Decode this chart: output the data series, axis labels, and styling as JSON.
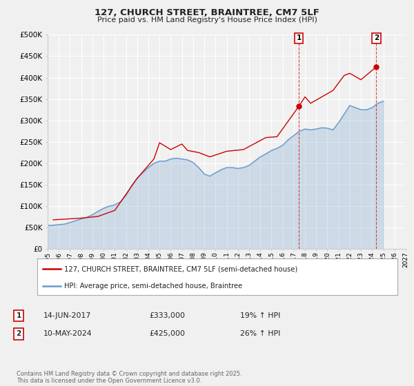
{
  "title1": "127, CHURCH STREET, BRAINTREE, CM7 5LF",
  "title2": "Price paid vs. HM Land Registry's House Price Index (HPI)",
  "legend_line1": "127, CHURCH STREET, BRAINTREE, CM7 5LF (semi-detached house)",
  "legend_line2": "HPI: Average price, semi-detached house, Braintree",
  "annotation1_label": "1",
  "annotation1_date": "14-JUN-2017",
  "annotation1_price": "£333,000",
  "annotation1_hpi": "19% ↑ HPI",
  "annotation1_year": 2017.45,
  "annotation1_value": 333000,
  "annotation2_label": "2",
  "annotation2_date": "10-MAY-2024",
  "annotation2_price": "£425,000",
  "annotation2_hpi": "26% ↑ HPI",
  "annotation2_year": 2024.37,
  "annotation2_value": 425000,
  "xmin": 1995,
  "xmax": 2027,
  "ymin": 0,
  "ymax": 500000,
  "yticks": [
    0,
    50000,
    100000,
    150000,
    200000,
    250000,
    300000,
    350000,
    400000,
    450000,
    500000
  ],
  "background_color": "#f0f0f0",
  "plot_bg_color": "#f0f0f0",
  "red_color": "#cc0000",
  "blue_color": "#6699cc",
  "grid_color": "#ffffff",
  "copyright_text": "Contains HM Land Registry data © Crown copyright and database right 2025.\nThis data is licensed under the Open Government Licence v3.0.",
  "hpi_x": [
    1995.0,
    1995.5,
    1996.0,
    1996.5,
    1997.0,
    1997.5,
    1998.0,
    1998.5,
    1999.0,
    1999.5,
    2000.0,
    2000.5,
    2001.0,
    2001.5,
    2002.0,
    2002.5,
    2003.0,
    2003.5,
    2004.0,
    2004.5,
    2005.0,
    2005.5,
    2006.0,
    2006.5,
    2007.0,
    2007.5,
    2008.0,
    2008.5,
    2009.0,
    2009.5,
    2010.0,
    2010.5,
    2011.0,
    2011.5,
    2012.0,
    2012.5,
    2013.0,
    2013.5,
    2014.0,
    2014.5,
    2015.0,
    2015.5,
    2016.0,
    2016.5,
    2017.0,
    2017.5,
    2018.0,
    2018.5,
    2019.0,
    2019.5,
    2020.0,
    2020.5,
    2021.0,
    2021.5,
    2022.0,
    2022.5,
    2023.0,
    2023.5,
    2024.0,
    2024.5,
    2025.0
  ],
  "hpi_y": [
    55000,
    55500,
    57000,
    58000,
    62000,
    66000,
    70000,
    74000,
    80000,
    88000,
    95000,
    100000,
    103000,
    110000,
    125000,
    148000,
    165000,
    178000,
    190000,
    200000,
    205000,
    205000,
    210000,
    212000,
    210000,
    208000,
    202000,
    190000,
    175000,
    170000,
    178000,
    185000,
    190000,
    190000,
    188000,
    190000,
    195000,
    205000,
    215000,
    222000,
    230000,
    235000,
    242000,
    255000,
    265000,
    275000,
    280000,
    278000,
    280000,
    283000,
    282000,
    278000,
    295000,
    315000,
    335000,
    330000,
    325000,
    325000,
    330000,
    340000,
    345000
  ],
  "price_x": [
    1995.5,
    1998.0,
    1999.5,
    2001.0,
    2003.0,
    2004.5,
    2005.0,
    2006.0,
    2007.0,
    2007.5,
    2008.5,
    2009.5,
    2011.0,
    2012.5,
    2014.5,
    2015.5,
    2017.45,
    2018.0,
    2018.5,
    2019.5,
    2020.5,
    2021.5,
    2022.0,
    2023.0,
    2024.37
  ],
  "price_y": [
    68000,
    72000,
    76000,
    90000,
    165000,
    210000,
    248000,
    232000,
    245000,
    230000,
    225000,
    215000,
    228000,
    232000,
    260000,
    262000,
    333000,
    355000,
    340000,
    355000,
    370000,
    405000,
    410000,
    395000,
    425000
  ]
}
